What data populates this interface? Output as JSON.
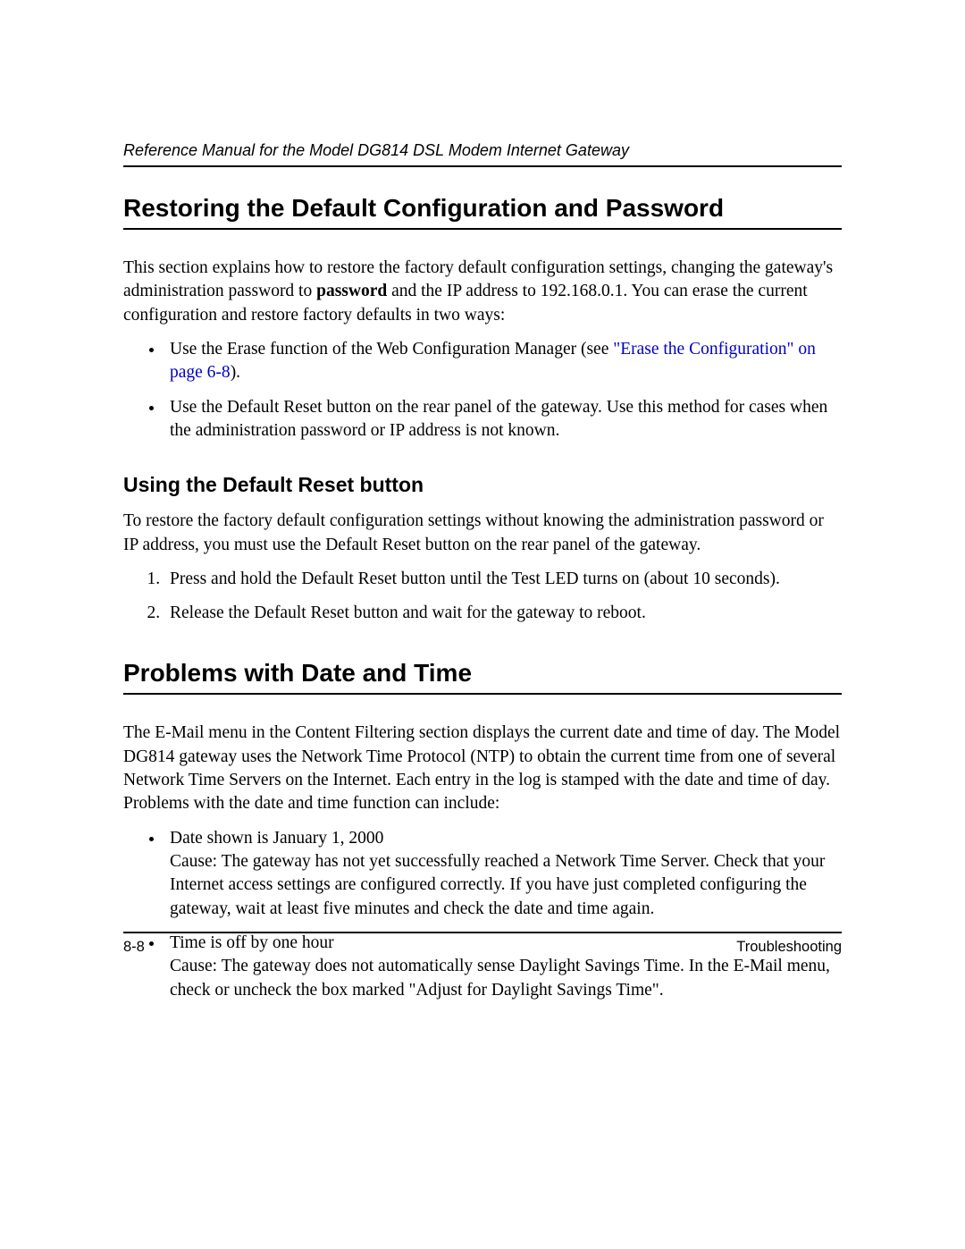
{
  "header": {
    "running": "Reference Manual for the Model DG814 DSL Modem Internet Gateway"
  },
  "section1": {
    "title": "Restoring the Default Configuration and Password",
    "intro_pre": "This section explains how to restore the factory default configuration settings, changing the gateway's administration password to ",
    "intro_bold": "password",
    "intro_post": " and the IP address to 192.168.0.1. You can erase the current configuration and restore factory defaults in two ways:",
    "bullets": {
      "b1_pre": "Use the Erase function of the Web Configuration Manager (see ",
      "b1_link": "\"Erase the Configuration\" on page 6-8",
      "b1_post": ").",
      "b2": "Use the Default Reset button on the rear panel of the gateway. Use this method for cases when the administration password or IP address is not known."
    }
  },
  "subsection": {
    "title": "Using the Default Reset button",
    "intro": "To restore the factory default configuration settings without knowing the administration password or IP address, you must use the Default Reset button on the rear panel of the gateway.",
    "steps": {
      "s1": "Press and hold the Default Reset button until the Test LED turns on (about 10 seconds).",
      "s2": "Release the Default Reset button and wait for the gateway to reboot."
    }
  },
  "section2": {
    "title": "Problems with Date and Time",
    "intro": "The E-Mail menu in the Content Filtering section displays the current date and time of day. The Model DG814 gateway uses the Network Time Protocol (NTP) to obtain the current time from one of several Network Time Servers on the Internet. Each entry in the log is stamped with the date and time of day. Problems with the date and time function can include:",
    "bullets": {
      "b1_head": "Date shown is January 1, 2000",
      "b1_body": "Cause: The gateway has not yet successfully reached a Network Time Server. Check that your Internet access settings are configured correctly. If you have just completed configuring the gateway, wait at least five minutes and check the date and time again.",
      "b2_head": "Time is off by one hour",
      "b2_body": "Cause: The gateway does not automatically sense Daylight Savings Time. In the E-Mail menu, check or uncheck the box marked \"Adjust for Daylight Savings Time\"."
    }
  },
  "footer": {
    "page": "8-8",
    "chapter": "Troubleshooting"
  }
}
